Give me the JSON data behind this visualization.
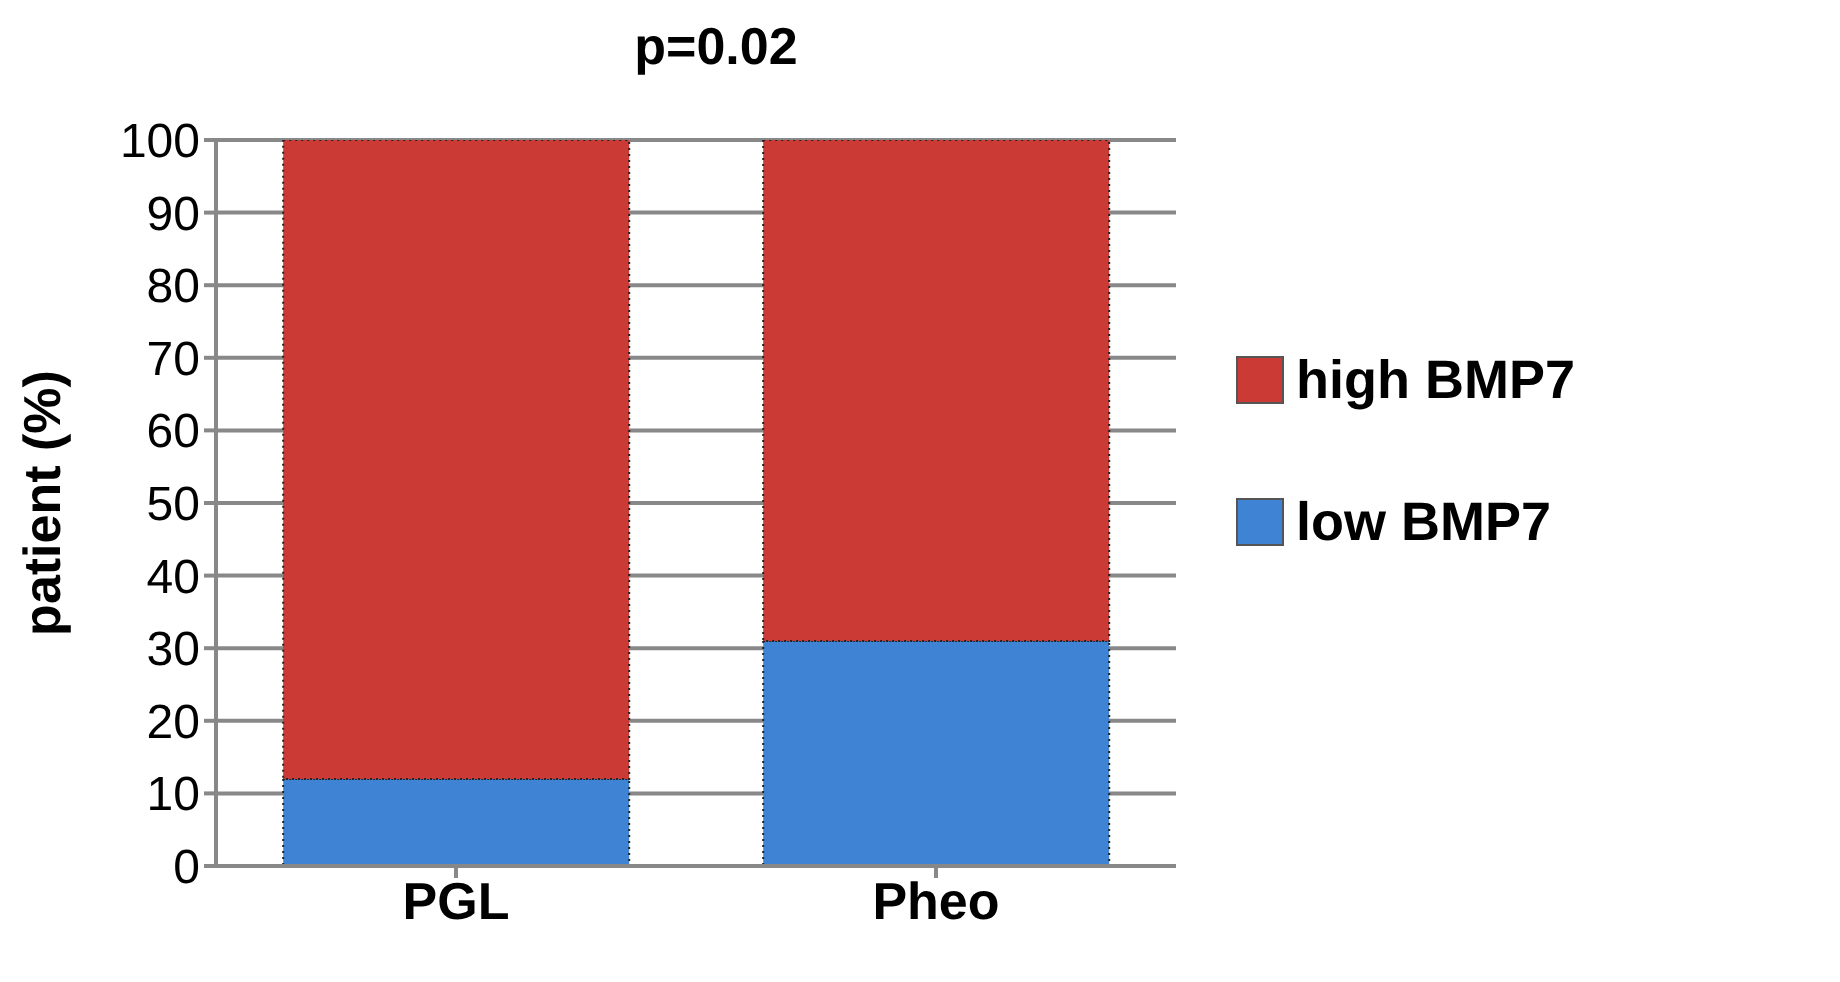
{
  "chart_data": {
    "type": "bar",
    "title": "p=0.02",
    "ylabel": "patient (%)",
    "categories": [
      "PGL",
      "Pheo"
    ],
    "stacked": true,
    "series": [
      {
        "name": "low BMP7",
        "color": "#3f84d4",
        "values": [
          12,
          31
        ]
      },
      {
        "name": "high BMP7",
        "color": "#cc3a36",
        "values": [
          88,
          69
        ]
      }
    ],
    "ylim": [
      0,
      100
    ],
    "yticks": [
      0,
      10,
      20,
      30,
      40,
      50,
      60,
      70,
      80,
      90,
      100
    ],
    "grid": "y",
    "legend": "right"
  }
}
